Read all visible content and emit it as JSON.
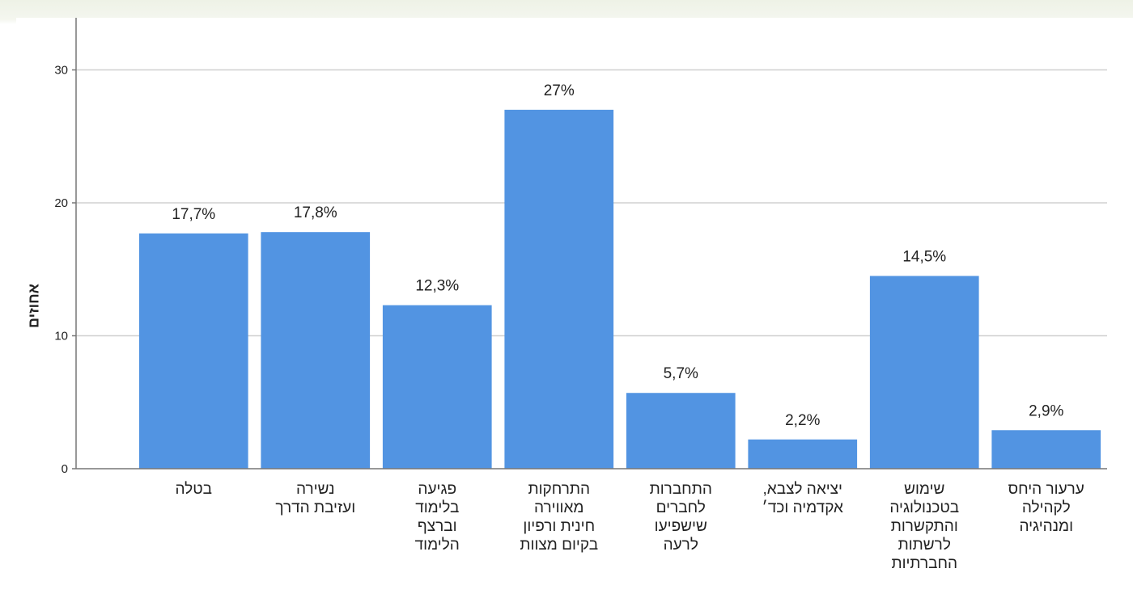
{
  "chart_data": {
    "type": "bar",
    "ylabel": "אחוזים",
    "ylim": [
      0,
      33
    ],
    "yticks": [
      0,
      10,
      20,
      30
    ],
    "grid": true,
    "categories": [
      "בטלה",
      "נשירה\nועזיבת הדרך",
      "פגיעה\nבלימוד\nוברצף\nהלימוד",
      "התרחקות\nמאווירה\nחינית ורפיון\nבקיום מצוות",
      "התחברות\nלחברים\nשישפיעו\nלרעה",
      "יציאה לצבא,\nאקדמיה וכד׳",
      "שימוש\nבטכנולוגיה\nוהתקשרות\nלרשתות\nהחברתיות",
      "ערעור היחס\nלקהילה\nומנהיגיה"
    ],
    "values": [
      17.7,
      17.8,
      12.3,
      27,
      5.7,
      2.2,
      14.5,
      2.9
    ],
    "value_labels": [
      "17,7%",
      "17,8%",
      "12,3%",
      "27%",
      "5,7%",
      "2,2%",
      "14,5%",
      "2,9%"
    ],
    "colors": {
      "bar": "#5294e2",
      "grid": "#d0d0d0",
      "axis": "#777777"
    }
  }
}
